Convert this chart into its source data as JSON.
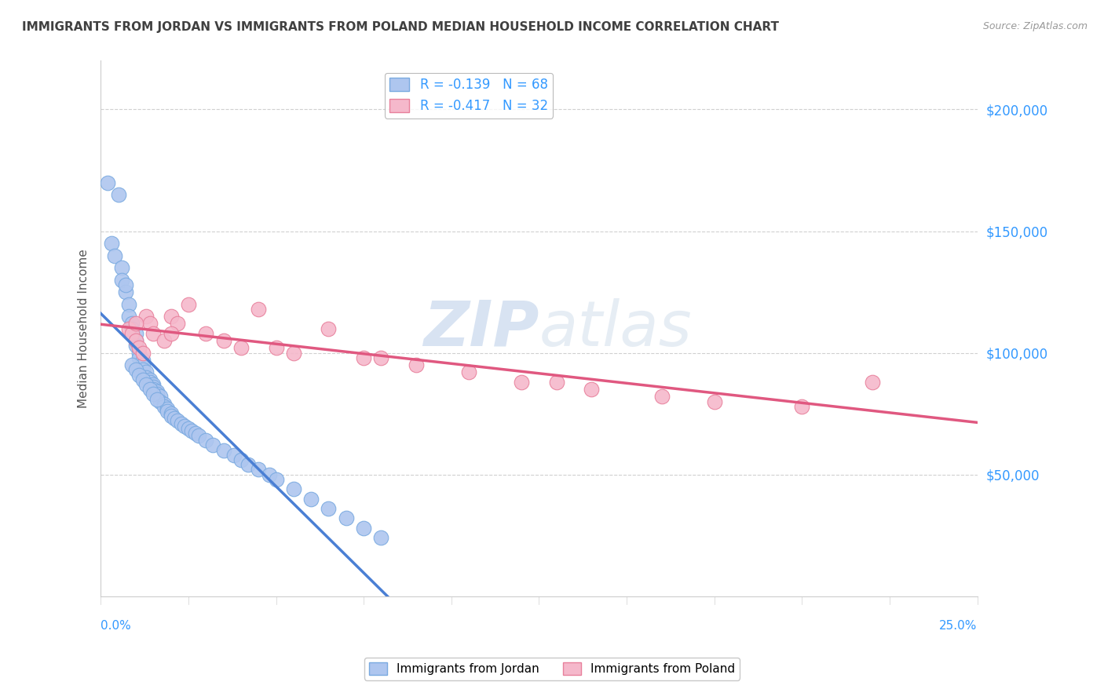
{
  "title": "IMMIGRANTS FROM JORDAN VS IMMIGRANTS FROM POLAND MEDIAN HOUSEHOLD INCOME CORRELATION CHART",
  "source": "Source: ZipAtlas.com",
  "ylabel": "Median Household Income",
  "xlim": [
    0.0,
    0.25
  ],
  "ylim": [
    0,
    220000
  ],
  "yticks": [
    50000,
    100000,
    150000,
    200000
  ],
  "ytick_labels": [
    "$50,000",
    "$100,000",
    "$150,000",
    "$200,000"
  ],
  "watermark_1": "ZIP",
  "watermark_2": "atlas",
  "jordan_color": "#aec6ef",
  "jordan_edge": "#7aaae0",
  "poland_color": "#f5b8cb",
  "poland_edge": "#e8809c",
  "jordan_line_color": "#4a7fd4",
  "poland_line_color": "#e05880",
  "jordan_R": -0.139,
  "jordan_N": 68,
  "poland_R": -0.417,
  "poland_N": 32,
  "jordan_scatter_x": [
    0.002,
    0.003,
    0.004,
    0.005,
    0.006,
    0.006,
    0.007,
    0.007,
    0.008,
    0.008,
    0.009,
    0.009,
    0.01,
    0.01,
    0.01,
    0.011,
    0.011,
    0.012,
    0.012,
    0.012,
    0.013,
    0.013,
    0.014,
    0.014,
    0.015,
    0.015,
    0.015,
    0.016,
    0.016,
    0.017,
    0.017,
    0.018,
    0.018,
    0.019,
    0.019,
    0.02,
    0.02,
    0.021,
    0.022,
    0.023,
    0.024,
    0.025,
    0.026,
    0.027,
    0.028,
    0.03,
    0.032,
    0.035,
    0.038,
    0.04,
    0.042,
    0.045,
    0.048,
    0.05,
    0.055,
    0.06,
    0.065,
    0.07,
    0.075,
    0.08,
    0.009,
    0.01,
    0.011,
    0.012,
    0.013,
    0.014,
    0.015,
    0.016
  ],
  "jordan_scatter_y": [
    170000,
    145000,
    140000,
    165000,
    135000,
    130000,
    125000,
    128000,
    120000,
    115000,
    112000,
    110000,
    108000,
    105000,
    103000,
    100000,
    98000,
    97000,
    95000,
    93000,
    92000,
    90000,
    89000,
    88000,
    87000,
    86000,
    85000,
    84000,
    83000,
    82000,
    80000,
    79000,
    78000,
    77000,
    76000,
    75000,
    74000,
    73000,
    72000,
    71000,
    70000,
    69000,
    68000,
    67000,
    66000,
    64000,
    62000,
    60000,
    58000,
    56000,
    54000,
    52000,
    50000,
    48000,
    44000,
    40000,
    36000,
    32000,
    28000,
    24000,
    95000,
    93000,
    91000,
    89000,
    87000,
    85000,
    83000,
    81000
  ],
  "poland_scatter_x": [
    0.008,
    0.009,
    0.01,
    0.011,
    0.012,
    0.013,
    0.014,
    0.015,
    0.018,
    0.02,
    0.022,
    0.025,
    0.03,
    0.035,
    0.04,
    0.045,
    0.055,
    0.065,
    0.075,
    0.09,
    0.105,
    0.12,
    0.14,
    0.16,
    0.175,
    0.2,
    0.22,
    0.01,
    0.02,
    0.05,
    0.08,
    0.13
  ],
  "poland_scatter_y": [
    110000,
    108000,
    105000,
    102000,
    100000,
    115000,
    112000,
    108000,
    105000,
    115000,
    112000,
    120000,
    108000,
    105000,
    102000,
    118000,
    100000,
    110000,
    98000,
    95000,
    92000,
    88000,
    85000,
    82000,
    80000,
    78000,
    88000,
    112000,
    108000,
    102000,
    98000,
    88000
  ],
  "grid_color": "#d0d0d0",
  "background_color": "#ffffff",
  "title_color": "#404040",
  "tick_label_color": "#3399ff",
  "ylabel_color": "#555555"
}
